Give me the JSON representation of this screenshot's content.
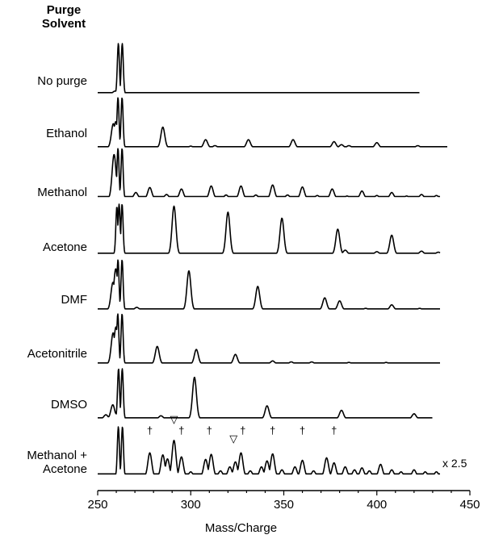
{
  "chart_data": {
    "type": "line",
    "title": "Purge\nSolvent",
    "title_lines": [
      "Purge",
      "Solvent"
    ],
    "xlabel": "Mass/Charge",
    "ylabel": "",
    "xlim": [
      250,
      450
    ],
    "xticks": [
      250,
      300,
      350,
      400,
      450
    ],
    "grid": false,
    "legend": "none",
    "annotations": {
      "scale_note": "x 2.5",
      "dagger": "†",
      "triangle": "▽",
      "dagger_x": [
        278,
        295,
        310,
        328,
        344,
        360,
        377
      ],
      "triangle_x": [
        291,
        323
      ]
    },
    "series": [
      {
        "name": "No purge",
        "x_end": 423,
        "baseline": 0.02,
        "peaks": [
          [
            259.3,
            0.05
          ],
          [
            261.1,
            1.0
          ],
          [
            263.2,
            1.0
          ]
        ]
      },
      {
        "name": "Ethanol",
        "x_end": 438,
        "baseline": 0.02,
        "peaks": [
          [
            258.4,
            0.48
          ],
          [
            259.7,
            0.52
          ],
          [
            260.9,
            1.0
          ],
          [
            263.1,
            1.0
          ],
          [
            285,
            0.41
          ],
          [
            300,
            0.03
          ],
          [
            308,
            0.16
          ],
          [
            313,
            0.04
          ],
          [
            331,
            0.16
          ],
          [
            355,
            0.16
          ],
          [
            377,
            0.12
          ],
          [
            381,
            0.06
          ],
          [
            385,
            0.04
          ],
          [
            400,
            0.1
          ],
          [
            422,
            0.04
          ]
        ]
      },
      {
        "name": "Methanol",
        "x_end": 434,
        "baseline": 0.04,
        "peaks": [
          [
            258.8,
            0.88
          ],
          [
            260.9,
            1.0
          ],
          [
            263.1,
            1.0
          ],
          [
            270.5,
            0.12
          ],
          [
            278,
            0.22
          ],
          [
            287,
            0.08
          ],
          [
            295,
            0.19
          ],
          [
            311,
            0.25
          ],
          [
            319,
            0.07
          ],
          [
            327,
            0.25
          ],
          [
            335,
            0.07
          ],
          [
            344,
            0.27
          ],
          [
            352,
            0.07
          ],
          [
            360,
            0.23
          ],
          [
            368,
            0.06
          ],
          [
            376,
            0.19
          ],
          [
            384,
            0.05
          ],
          [
            392,
            0.15
          ],
          [
            400,
            0.06
          ],
          [
            408,
            0.12
          ],
          [
            416,
            0.05
          ],
          [
            424,
            0.08
          ],
          [
            432,
            0.06
          ]
        ]
      },
      {
        "name": "Acetone",
        "x_end": 434,
        "baseline": 0.02,
        "peaks": [
          [
            260.3,
            0.95
          ],
          [
            261.5,
            1.0
          ],
          [
            263.1,
            1.0
          ],
          [
            291,
            0.96
          ],
          [
            320,
            0.84
          ],
          [
            349,
            0.72
          ],
          [
            379,
            0.5
          ],
          [
            383,
            0.08
          ],
          [
            400,
            0.05
          ],
          [
            408,
            0.38
          ],
          [
            424,
            0.06
          ],
          [
            433,
            0.04
          ]
        ]
      },
      {
        "name": "DMF",
        "x_end": 434,
        "baseline": 0.02,
        "peaks": [
          [
            258.2,
            0.55
          ],
          [
            259.7,
            0.82
          ],
          [
            260.9,
            1.0
          ],
          [
            263.1,
            1.0
          ],
          [
            271,
            0.05
          ],
          [
            299,
            0.78
          ],
          [
            336,
            0.47
          ],
          [
            372,
            0.24
          ],
          [
            380,
            0.18
          ],
          [
            394,
            0.03
          ],
          [
            408,
            0.1
          ],
          [
            423,
            0.03
          ]
        ]
      },
      {
        "name": "Acetonitrile",
        "x_end": 434,
        "baseline": 0.02,
        "peaks": [
          [
            258.3,
            0.62
          ],
          [
            259.8,
            0.74
          ],
          [
            260.8,
            1.0
          ],
          [
            263.1,
            1.0
          ],
          [
            282,
            0.35
          ],
          [
            303,
            0.29
          ],
          [
            324,
            0.19
          ],
          [
            344,
            0.06
          ],
          [
            354,
            0.04
          ],
          [
            365,
            0.04
          ],
          [
            385,
            0.03
          ],
          [
            405,
            0.03
          ]
        ]
      },
      {
        "name": "DMSO",
        "x_end": 430,
        "baseline": 0.02,
        "peaks": [
          [
            254.4,
            0.08
          ],
          [
            256.8,
            0.06
          ],
          [
            258.1,
            0.28
          ],
          [
            259.3,
            0.12
          ],
          [
            261.2,
            1.0
          ],
          [
            263.2,
            1.0
          ],
          [
            284,
            0.06
          ],
          [
            302,
            0.83
          ],
          [
            341,
            0.26
          ],
          [
            381,
            0.17
          ],
          [
            420,
            0.1
          ]
        ]
      },
      {
        "name": "Methanol +\nAcetone",
        "x_end": 434,
        "baseline": 0.06,
        "peaks": [
          [
            261.1,
            1.0
          ],
          [
            263.3,
            1.0
          ],
          [
            278,
            0.48
          ],
          [
            285,
            0.44
          ],
          [
            287.5,
            0.36
          ],
          [
            291,
            0.73
          ],
          [
            295,
            0.4
          ],
          [
            300,
            0.1
          ],
          [
            308,
            0.35
          ],
          [
            311,
            0.45
          ],
          [
            316,
            0.12
          ],
          [
            321,
            0.2
          ],
          [
            324,
            0.3
          ],
          [
            327,
            0.48
          ],
          [
            332,
            0.12
          ],
          [
            338,
            0.2
          ],
          [
            341,
            0.32
          ],
          [
            344,
            0.46
          ],
          [
            349,
            0.14
          ],
          [
            356,
            0.2
          ],
          [
            360,
            0.33
          ],
          [
            366,
            0.12
          ],
          [
            373,
            0.38
          ],
          [
            377,
            0.28
          ],
          [
            383,
            0.2
          ],
          [
            388,
            0.14
          ],
          [
            392,
            0.18
          ],
          [
            396,
            0.12
          ],
          [
            402,
            0.25
          ],
          [
            408,
            0.14
          ],
          [
            413,
            0.1
          ],
          [
            420,
            0.14
          ],
          [
            426,
            0.1
          ],
          [
            432,
            0.1
          ]
        ]
      }
    ]
  }
}
